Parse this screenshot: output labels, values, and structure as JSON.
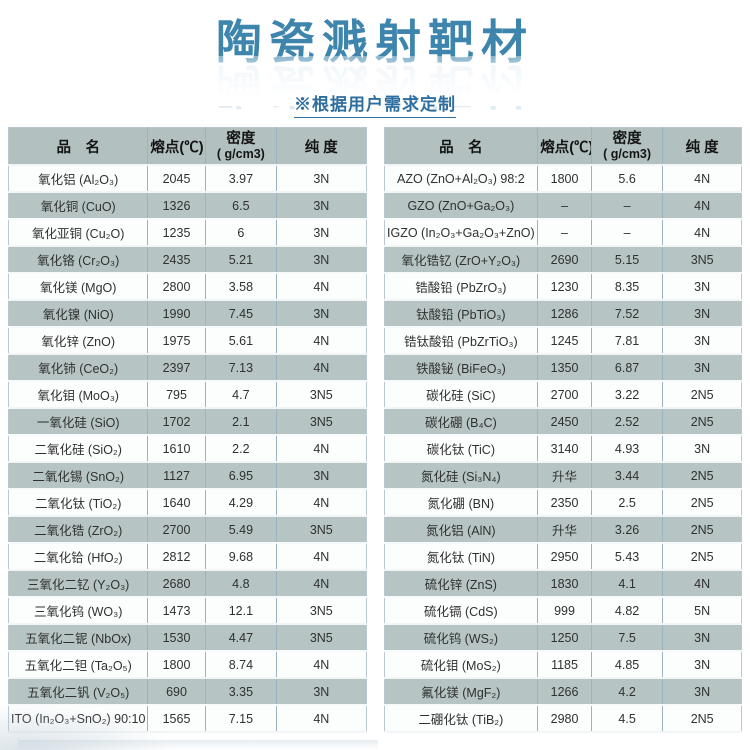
{
  "header": {
    "title": "陶瓷溅射靶材",
    "subtitle": "※根据用户需求定制"
  },
  "columns": {
    "name": "品　名",
    "melting_point": "熔点(℃)",
    "density_line1": "密度",
    "density_line2": "( g/cm3)",
    "purity": "纯 度"
  },
  "left_table": {
    "rows": [
      {
        "name": "氧化铝 (Al₂O₃)",
        "melting_point": "2045",
        "density": "3.97",
        "purity": "3N"
      },
      {
        "name": "氧化铜 (CuO)",
        "melting_point": "1326",
        "density": "6.5",
        "purity": "3N"
      },
      {
        "name": "氧化亚铜 (Cu₂O)",
        "melting_point": "1235",
        "density": "6",
        "purity": "3N"
      },
      {
        "name": "氧化铬 (Cr₂O₃)",
        "melting_point": "2435",
        "density": "5.21",
        "purity": "3N"
      },
      {
        "name": "氧化镁 (MgO)",
        "melting_point": "2800",
        "density": "3.58",
        "purity": "4N"
      },
      {
        "name": "氧化镍 (NiO)",
        "melting_point": "1990",
        "density": "7.45",
        "purity": "3N"
      },
      {
        "name": "氧化锌 (ZnO)",
        "melting_point": "1975",
        "density": "5.61",
        "purity": "4N"
      },
      {
        "name": "氧化铈 (CeO₂)",
        "melting_point": "2397",
        "density": "7.13",
        "purity": "4N"
      },
      {
        "name": "氧化钼 (MoO₃)",
        "melting_point": "795",
        "density": "4.7",
        "purity": "3N5"
      },
      {
        "name": "一氧化硅 (SiO)",
        "melting_point": "1702",
        "density": "2.1",
        "purity": "3N5"
      },
      {
        "name": "二氧化硅 (SiO₂)",
        "melting_point": "1610",
        "density": "2.2",
        "purity": "4N"
      },
      {
        "name": "二氧化锡 (SnO₂)",
        "melting_point": "1127",
        "density": "6.95",
        "purity": "3N"
      },
      {
        "name": "二氧化钛 (TiO₂)",
        "melting_point": "1640",
        "density": "4.29",
        "purity": "4N"
      },
      {
        "name": "二氧化锆 (ZrO₂)",
        "melting_point": "2700",
        "density": "5.49",
        "purity": "3N5"
      },
      {
        "name": "二氧化铪 (HfO₂)",
        "melting_point": "2812",
        "density": "9.68",
        "purity": "4N"
      },
      {
        "name": "三氧化二钇 (Y₂O₃)",
        "melting_point": "2680",
        "density": "4.8",
        "purity": "4N"
      },
      {
        "name": "三氧化钨 (WO₃)",
        "melting_point": "1473",
        "density": "12.1",
        "purity": "3N5"
      },
      {
        "name": "五氧化二铌 (NbOx)",
        "melting_point": "1530",
        "density": "4.47",
        "purity": "3N5"
      },
      {
        "name": "五氧化二钽 (Ta₂O₅)",
        "melting_point": "1800",
        "density": "8.74",
        "purity": "4N"
      },
      {
        "name": "五氧化二钒 (V₂O₅)",
        "melting_point": "690",
        "density": "3.35",
        "purity": "3N"
      },
      {
        "name": "ITO (In₂O₃+SnO₂) 90:10",
        "melting_point": "1565",
        "density": "7.15",
        "purity": "4N"
      }
    ]
  },
  "right_table": {
    "rows": [
      {
        "name": "AZO (ZnO+Al₂O₃) 98:2",
        "melting_point": "1800",
        "density": "5.6",
        "purity": "4N"
      },
      {
        "name": "GZO (ZnO+Ga₂O₃)",
        "melting_point": "–",
        "density": "–",
        "purity": "4N"
      },
      {
        "name": "IGZO (In₂O₃+Ga₂O₃+ZnO)",
        "melting_point": "–",
        "density": "–",
        "purity": "4N"
      },
      {
        "name": "氧化锆钇 (ZrO+Y₂O₃)",
        "melting_point": "2690",
        "density": "5.15",
        "purity": "3N5"
      },
      {
        "name": "锆酸铅 (PbZrO₃)",
        "melting_point": "1230",
        "density": "8.35",
        "purity": "3N"
      },
      {
        "name": "钛酸铅 (PbTiO₃)",
        "melting_point": "1286",
        "density": "7.52",
        "purity": "3N"
      },
      {
        "name": "锆钛酸铅 (PbZrTiO₃)",
        "melting_point": "1245",
        "density": "7.81",
        "purity": "3N"
      },
      {
        "name": "铁酸铋 (BiFeO₃)",
        "melting_point": "1350",
        "density": "6.87",
        "purity": "3N"
      },
      {
        "name": "碳化硅 (SiC)",
        "melting_point": "2700",
        "density": "3.22",
        "purity": "2N5"
      },
      {
        "name": "碳化硼 (B₄C)",
        "melting_point": "2450",
        "density": "2.52",
        "purity": "2N5"
      },
      {
        "name": "碳化钛 (TiC)",
        "melting_point": "3140",
        "density": "4.93",
        "purity": "3N"
      },
      {
        "name": "氮化硅 (Si₃N₄)",
        "melting_point": "升华",
        "density": "3.44",
        "purity": "2N5"
      },
      {
        "name": "氮化硼 (BN)",
        "melting_point": "2350",
        "density": "2.5",
        "purity": "2N5"
      },
      {
        "name": "氮化铝 (AlN)",
        "melting_point": "升华",
        "density": "3.26",
        "purity": "2N5"
      },
      {
        "name": "氮化钛 (TiN)",
        "melting_point": "2950",
        "density": "5.43",
        "purity": "2N5"
      },
      {
        "name": "硫化锌 (ZnS)",
        "melting_point": "1830",
        "density": "4.1",
        "purity": "4N"
      },
      {
        "name": "硫化镉 (CdS)",
        "melting_point": "999",
        "density": "4.82",
        "purity": "5N"
      },
      {
        "name": "硫化钨 (WS₂)",
        "melting_point": "1250",
        "density": "7.5",
        "purity": "3N"
      },
      {
        "name": "硫化钼 (MoS₂)",
        "melting_point": "1185",
        "density": "4.85",
        "purity": "3N"
      },
      {
        "name": "氟化镁 (MgF₂)",
        "melting_point": "1266",
        "density": "4.2",
        "purity": "3N"
      },
      {
        "name": "二硼化钛 (TiB₂)",
        "melting_point": "2980",
        "density": "4.5",
        "purity": "2N5"
      }
    ]
  },
  "colors": {
    "accent": "#3e85ad",
    "subtitle": "#2f6f9f",
    "header_bg": "#b2c1c0",
    "alt_row_bg": "#b6c5c4",
    "plain_row_bg": "#fcfdfd",
    "column_divider": "#9cb3c1",
    "row_divider": "#f2f5f6",
    "outer_border": "#b9c8d0",
    "cell_text": "#303030"
  }
}
